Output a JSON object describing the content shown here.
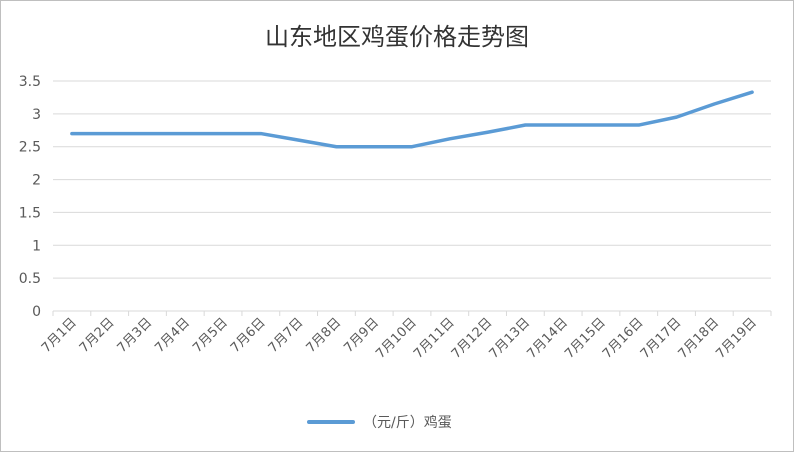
{
  "chart_data": {
    "type": "line",
    "title": "山东地区鸡蛋价格走势图",
    "xlabel": "",
    "ylabel": "",
    "categories": [
      "7月1日",
      "7月2日",
      "7月3日",
      "7月4日",
      "7月5日",
      "7月6日",
      "7月7日",
      "7月8日",
      "7月9日",
      "7月10日",
      "7月11日",
      "7月12日",
      "7月13日",
      "7月14日",
      "7月15日",
      "7月16日",
      "7月17日",
      "7月18日",
      "7月19日"
    ],
    "series": [
      {
        "name": "（元/斤）鸡蛋",
        "color": "#5b9bd5",
        "values": [
          2.7,
          2.7,
          2.7,
          2.7,
          2.7,
          2.7,
          2.6,
          2.5,
          2.5,
          2.5,
          2.62,
          2.72,
          2.83,
          2.83,
          2.83,
          2.83,
          2.95,
          3.15,
          3.33
        ]
      }
    ],
    "ylim": [
      0,
      3.5
    ],
    "yticks": [
      "0",
      "0.5",
      "1",
      "1.5",
      "2",
      "2.5",
      "3",
      "3.5"
    ],
    "grid": true,
    "legend_position": "bottom"
  }
}
